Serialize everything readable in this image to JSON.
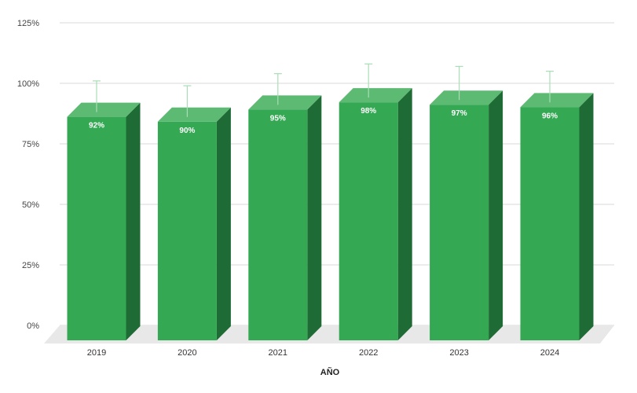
{
  "chart_data": {
    "type": "bar",
    "categories": [
      "2019",
      "2020",
      "2021",
      "2022",
      "2023",
      "2024"
    ],
    "values": [
      92,
      90,
      95,
      98,
      97,
      96
    ],
    "data_labels": [
      "92%",
      "90%",
      "95%",
      "98%",
      "97%",
      "96%"
    ],
    "error_bar_upper": [
      101,
      99,
      104,
      108,
      107,
      105
    ],
    "yticks": [
      "0%",
      "25%",
      "50%",
      "75%",
      "100%",
      "125%"
    ],
    "ylim": [
      0,
      125
    ],
    "xlabel": "AÑO",
    "ylabel": "",
    "title": "",
    "grid": true,
    "bar_style": "3d",
    "colors": {
      "front": "#34A853",
      "side": "#1E6B35",
      "top": "#5DBA73",
      "floor": "#E8E8E8",
      "grid": "#D9D9D9",
      "error_bar": "#A8DDB5"
    }
  }
}
